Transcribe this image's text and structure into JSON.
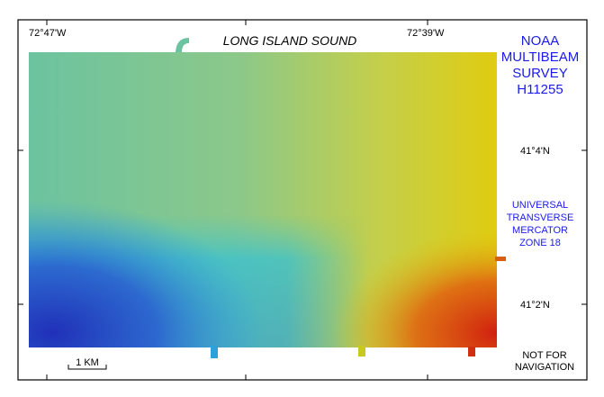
{
  "map": {
    "title": "LONG ISLAND SOUND",
    "lon_labels": [
      "72°47'W",
      "72°39'W"
    ],
    "lat_labels": [
      "41°4'N",
      "41°2'N"
    ],
    "survey": [
      "NOAA",
      "MULTIBEAM",
      "SURVEY",
      "H11255"
    ],
    "projection": [
      "UNIVERSAL",
      "TRANSVERSE",
      "MERCATOR",
      "ZONE 18"
    ],
    "scale_bar": "1 KM",
    "disclaimer": [
      "NOT FOR",
      "NAVIGATION"
    ]
  }
}
